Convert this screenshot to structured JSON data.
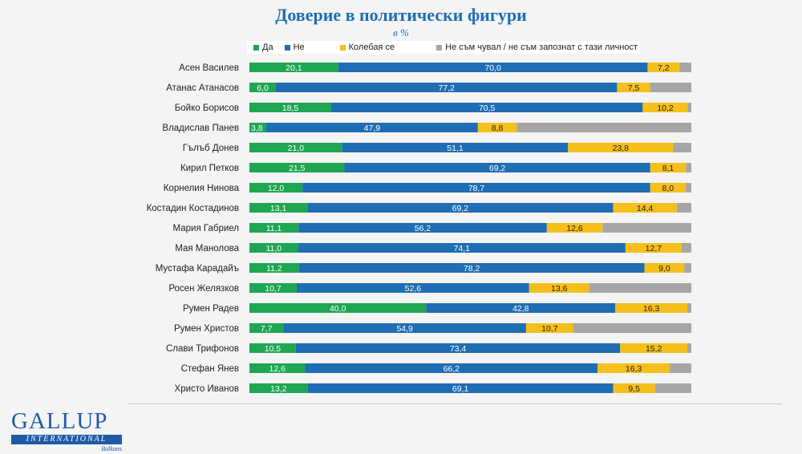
{
  "header": {
    "title": "Доверие в политически фигури",
    "subtitle": "в %"
  },
  "legend": [
    {
      "label": "Да",
      "color": "#1fa653"
    },
    {
      "label": "Не",
      "color": "#1f6db3"
    },
    {
      "label": "Колебая се",
      "color": "#f5c01b"
    },
    {
      "label": "Не съм чувал / не съм запознат с тази личност",
      "color": "#a6a6a6"
    }
  ],
  "logo": {
    "main": "GALLUP",
    "sub": "INTERNATIONAL",
    "region": "Balkans"
  },
  "chart_data": {
    "type": "bar",
    "orientation": "horizontal",
    "stacked": true,
    "categories": [
      "Асен Василев",
      "Атанас Атанасов",
      "Бойко Борисов",
      "Владислав Панев",
      "Гълъб Донев",
      "Кирил Петков",
      "Корнелия Нинова",
      "Костадин Костадинов",
      "Мария Габриел",
      "Мая Манолова",
      "Мустафа Карадайъ",
      "Росен Желязков",
      "Румен Радев",
      "Румен Христов",
      "Слави Трифонов",
      "Стефан Янев",
      "Христо Иванов"
    ],
    "series": [
      {
        "name": "Да",
        "color": "#1fa653",
        "values": [
          20.1,
          6.0,
          18.5,
          3.8,
          21.0,
          21.5,
          12.0,
          13.1,
          11.1,
          11.0,
          11.2,
          10.7,
          40.0,
          7.7,
          10.5,
          12.6,
          13.2
        ]
      },
      {
        "name": "Не",
        "color": "#1f6db3",
        "values": [
          70.0,
          77.2,
          70.5,
          47.9,
          51.1,
          69.2,
          78.7,
          69.2,
          56.2,
          74.1,
          78.2,
          52.6,
          42.8,
          54.9,
          73.4,
          66.2,
          69.1
        ]
      },
      {
        "name": "Колебая се",
        "color": "#f5c01b",
        "values": [
          7.2,
          7.5,
          10.2,
          8.8,
          23.8,
          8.1,
          8.0,
          14.4,
          12.6,
          12.7,
          9.0,
          13.6,
          16.3,
          10.7,
          15.2,
          16.3,
          9.5
        ]
      },
      {
        "name": "Не съм чувал / не съм запознат с тази личност",
        "color": "#a6a6a6",
        "values": [
          2.7,
          9.3,
          0.8,
          39.5,
          4.1,
          1.2,
          1.3,
          3.3,
          20.1,
          2.2,
          1.6,
          23.1,
          0.9,
          26.7,
          0.9,
          4.9,
          8.2
        ]
      }
    ],
    "data_labels": [
      "Да",
      "Не",
      "Колебая се"
    ],
    "xlim": [
      0,
      100
    ],
    "legend_position": "top",
    "grid": false
  }
}
